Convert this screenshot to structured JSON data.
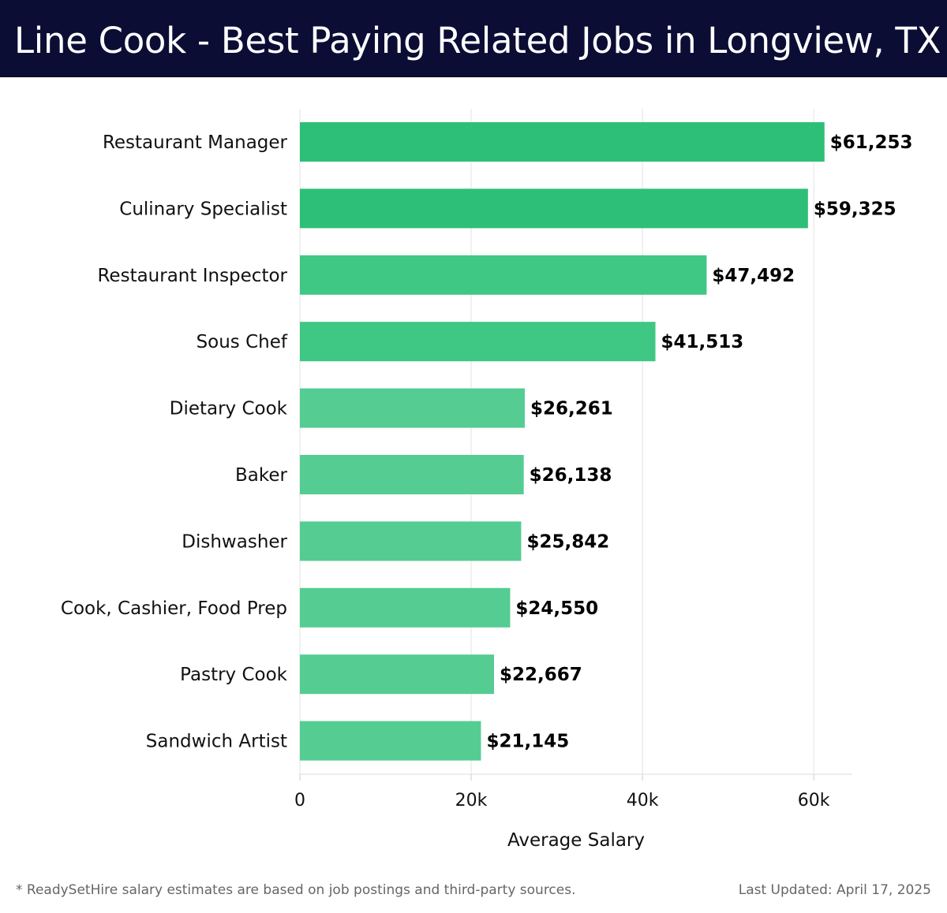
{
  "header": {
    "title": "Line Cook - Best Paying Related Jobs in Longview, TX"
  },
  "footer": {
    "note": "* ReadySetHire salary estimates are based on job postings and third-party sources.",
    "updated": "Last Updated: April 17, 2025"
  },
  "chart_data": {
    "type": "bar",
    "orientation": "horizontal",
    "title": "Line Cook - Best Paying Related Jobs in Longview, TX",
    "xlabel": "Average Salary",
    "ylabel": "",
    "categories": [
      "Restaurant Manager",
      "Culinary Specialist",
      "Restaurant Inspector",
      "Sous Chef",
      "Dietary Cook",
      "Baker",
      "Dishwasher",
      "Cook, Cashier, Food Prep",
      "Pastry Cook",
      "Sandwich Artist"
    ],
    "values": [
      61253,
      59325,
      47492,
      41513,
      26261,
      26138,
      25842,
      24550,
      22667,
      21145
    ],
    "value_labels": [
      "$61,253",
      "$59,325",
      "$47,492",
      "$41,513",
      "$26,261",
      "$26,138",
      "$25,842",
      "$24,550",
      "$22,667",
      "$21,145"
    ],
    "xlim": [
      0,
      64500
    ],
    "xticks": [
      0,
      20000,
      40000,
      60000
    ],
    "xtick_labels": [
      "0",
      "20k",
      "40k",
      "60k"
    ],
    "grid": true,
    "colors": {
      "high": "#2dbf78",
      "mid": "#3fc784",
      "low": "#55cc92",
      "grid": "#e3e3e3",
      "header_bg": "#0b0d35"
    }
  }
}
